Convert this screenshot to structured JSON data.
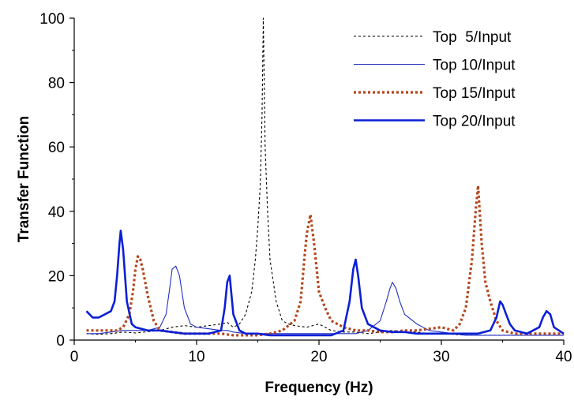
{
  "chart_data": {
    "type": "line",
    "title": "",
    "xlabel": "Frequency (Hz)",
    "ylabel": "Transfer Function",
    "xlim": [
      0,
      40
    ],
    "ylim": [
      0,
      100
    ],
    "xticks": [
      0,
      10,
      20,
      30,
      40
    ],
    "yticks": [
      0,
      20,
      40,
      60,
      80,
      100
    ],
    "grid": false,
    "legend_position": "top-right",
    "series": [
      {
        "name": "Top  5/Input",
        "color": "#000000",
        "style": "dashed-thin",
        "points": [
          [
            1,
            2
          ],
          [
            2,
            1.8
          ],
          [
            3,
            2
          ],
          [
            4,
            2.5
          ],
          [
            5,
            2.2
          ],
          [
            6,
            2.6
          ],
          [
            7,
            3
          ],
          [
            8,
            4
          ],
          [
            9,
            4.5
          ],
          [
            10,
            4
          ],
          [
            11,
            4.5
          ],
          [
            12,
            5
          ],
          [
            12.5,
            5.5
          ],
          [
            13,
            4
          ],
          [
            13.5,
            5
          ],
          [
            14,
            8
          ],
          [
            14.5,
            15
          ],
          [
            14.8,
            25
          ],
          [
            15,
            35
          ],
          [
            15.2,
            48
          ],
          [
            15.35,
            70
          ],
          [
            15.45,
            100
          ],
          [
            15.6,
            60
          ],
          [
            15.8,
            40
          ],
          [
            16,
            25
          ],
          [
            16.5,
            12
          ],
          [
            17,
            6
          ],
          [
            17.5,
            5
          ],
          [
            18,
            4.5
          ],
          [
            19,
            4
          ],
          [
            20,
            5
          ],
          [
            20.5,
            4
          ],
          [
            21,
            3
          ],
          [
            22,
            2.5
          ],
          [
            23,
            2.5
          ],
          [
            24,
            2
          ],
          [
            25,
            2.5
          ],
          [
            26,
            3
          ],
          [
            27,
            2.5
          ],
          [
            28,
            2.5
          ],
          [
            29,
            2
          ],
          [
            30,
            2
          ],
          [
            31,
            1.8
          ],
          [
            32,
            1.5
          ],
          [
            33,
            1.5
          ],
          [
            34,
            1.5
          ],
          [
            35,
            1.5
          ],
          [
            36,
            1.5
          ],
          [
            37,
            1.5
          ],
          [
            38,
            1.5
          ],
          [
            39,
            1.5
          ],
          [
            40,
            1.5
          ]
        ]
      },
      {
        "name": "Top 10/Input",
        "color": "#1f2fbf",
        "style": "solid-thin",
        "points": [
          [
            1,
            2
          ],
          [
            2,
            2
          ],
          [
            3,
            2.5
          ],
          [
            4,
            3
          ],
          [
            5,
            3
          ],
          [
            6,
            3
          ],
          [
            7,
            4
          ],
          [
            7.5,
            8
          ],
          [
            7.8,
            16
          ],
          [
            8,
            22
          ],
          [
            8.3,
            23
          ],
          [
            8.6,
            20
          ],
          [
            9,
            10
          ],
          [
            9.5,
            5
          ],
          [
            10,
            4
          ],
          [
            11,
            3.5
          ],
          [
            12,
            3
          ],
          [
            12.5,
            3
          ],
          [
            13,
            2.5
          ],
          [
            14,
            2
          ],
          [
            15,
            2
          ],
          [
            16,
            2
          ],
          [
            17,
            2
          ],
          [
            18,
            2
          ],
          [
            19,
            2
          ],
          [
            20,
            2
          ],
          [
            21,
            2
          ],
          [
            22,
            2
          ],
          [
            23,
            2
          ],
          [
            24,
            3
          ],
          [
            25,
            6
          ],
          [
            25.5,
            12
          ],
          [
            25.8,
            16
          ],
          [
            26,
            18
          ],
          [
            26.3,
            16
          ],
          [
            26.6,
            12
          ],
          [
            27,
            8
          ],
          [
            28,
            5
          ],
          [
            28.5,
            4
          ],
          [
            29,
            3
          ],
          [
            30,
            2.5
          ],
          [
            31,
            2
          ],
          [
            32,
            1.5
          ],
          [
            33,
            1.5
          ],
          [
            34,
            1.5
          ],
          [
            35,
            1.5
          ],
          [
            36,
            1.5
          ],
          [
            37,
            1.5
          ],
          [
            38,
            1.5
          ],
          [
            39,
            1.5
          ],
          [
            40,
            1.5
          ]
        ]
      },
      {
        "name": "Top 15/Input",
        "color": "#b5451b",
        "style": "dotted-thick",
        "points": [
          [
            1,
            3
          ],
          [
            2,
            3
          ],
          [
            3,
            3
          ],
          [
            3.5,
            3
          ],
          [
            4,
            4
          ],
          [
            4.5,
            8
          ],
          [
            4.8,
            15
          ],
          [
            5,
            22
          ],
          [
            5.2,
            26
          ],
          [
            5.4,
            25
          ],
          [
            5.6,
            22
          ],
          [
            6,
            14
          ],
          [
            6.5,
            6
          ],
          [
            7,
            3
          ],
          [
            8,
            2.5
          ],
          [
            9,
            2
          ],
          [
            10,
            2
          ],
          [
            11,
            2
          ],
          [
            12,
            2
          ],
          [
            13,
            1.5
          ],
          [
            14,
            1.5
          ],
          [
            15,
            1.5
          ],
          [
            16,
            2
          ],
          [
            17,
            3
          ],
          [
            18,
            6
          ],
          [
            18.5,
            12
          ],
          [
            18.8,
            25
          ],
          [
            19,
            33
          ],
          [
            19.3,
            39
          ],
          [
            19.6,
            30
          ],
          [
            20,
            15
          ],
          [
            20.5,
            10
          ],
          [
            21,
            6
          ],
          [
            22,
            4
          ],
          [
            23,
            3
          ],
          [
            24,
            3
          ],
          [
            25,
            2.5
          ],
          [
            26,
            2.5
          ],
          [
            27,
            3
          ],
          [
            28,
            3
          ],
          [
            29,
            3.5
          ],
          [
            30,
            4
          ],
          [
            31,
            3
          ],
          [
            31.5,
            5
          ],
          [
            32,
            10
          ],
          [
            32.5,
            25
          ],
          [
            32.8,
            40
          ],
          [
            33,
            48
          ],
          [
            33.3,
            30
          ],
          [
            33.6,
            18
          ],
          [
            34,
            12
          ],
          [
            34.5,
            6
          ],
          [
            35,
            3
          ],
          [
            36,
            2
          ],
          [
            37,
            2
          ],
          [
            38,
            2
          ],
          [
            39,
            2
          ],
          [
            40,
            2
          ]
        ]
      },
      {
        "name": "Top 20/Input",
        "color": "#0a1fd6",
        "style": "solid-thick",
        "points": [
          [
            1,
            9
          ],
          [
            1.5,
            7
          ],
          [
            2,
            7
          ],
          [
            2.5,
            8
          ],
          [
            3,
            9
          ],
          [
            3.3,
            12
          ],
          [
            3.5,
            20
          ],
          [
            3.7,
            30
          ],
          [
            3.8,
            34
          ],
          [
            4,
            28
          ],
          [
            4.3,
            12
          ],
          [
            4.7,
            5
          ],
          [
            5,
            4
          ],
          [
            6,
            3
          ],
          [
            7,
            3
          ],
          [
            8,
            2.5
          ],
          [
            9,
            2
          ],
          [
            10,
            2
          ],
          [
            11,
            2
          ],
          [
            12,
            3
          ],
          [
            12.3,
            10
          ],
          [
            12.5,
            18
          ],
          [
            12.7,
            20
          ],
          [
            13,
            8
          ],
          [
            13.5,
            3
          ],
          [
            14,
            2
          ],
          [
            15,
            2
          ],
          [
            16,
            1.5
          ],
          [
            17,
            1.5
          ],
          [
            18,
            1.5
          ],
          [
            19,
            1.5
          ],
          [
            20,
            1.5
          ],
          [
            21,
            1.5
          ],
          [
            22,
            3
          ],
          [
            22.5,
            12
          ],
          [
            22.8,
            22
          ],
          [
            23,
            25
          ],
          [
            23.2,
            20
          ],
          [
            23.5,
            10
          ],
          [
            24,
            5
          ],
          [
            25,
            3
          ],
          [
            26,
            2.5
          ],
          [
            27,
            2.5
          ],
          [
            28,
            2
          ],
          [
            29,
            2
          ],
          [
            30,
            2
          ],
          [
            31,
            2
          ],
          [
            32,
            2
          ],
          [
            33,
            2
          ],
          [
            34,
            3
          ],
          [
            34.5,
            7
          ],
          [
            34.8,
            12
          ],
          [
            35,
            11
          ],
          [
            35.3,
            8
          ],
          [
            35.6,
            5
          ],
          [
            36,
            3
          ],
          [
            37,
            2
          ],
          [
            38,
            4
          ],
          [
            38.3,
            7
          ],
          [
            38.6,
            9
          ],
          [
            38.9,
            8
          ],
          [
            39.2,
            4
          ],
          [
            40,
            2
          ]
        ]
      }
    ]
  }
}
